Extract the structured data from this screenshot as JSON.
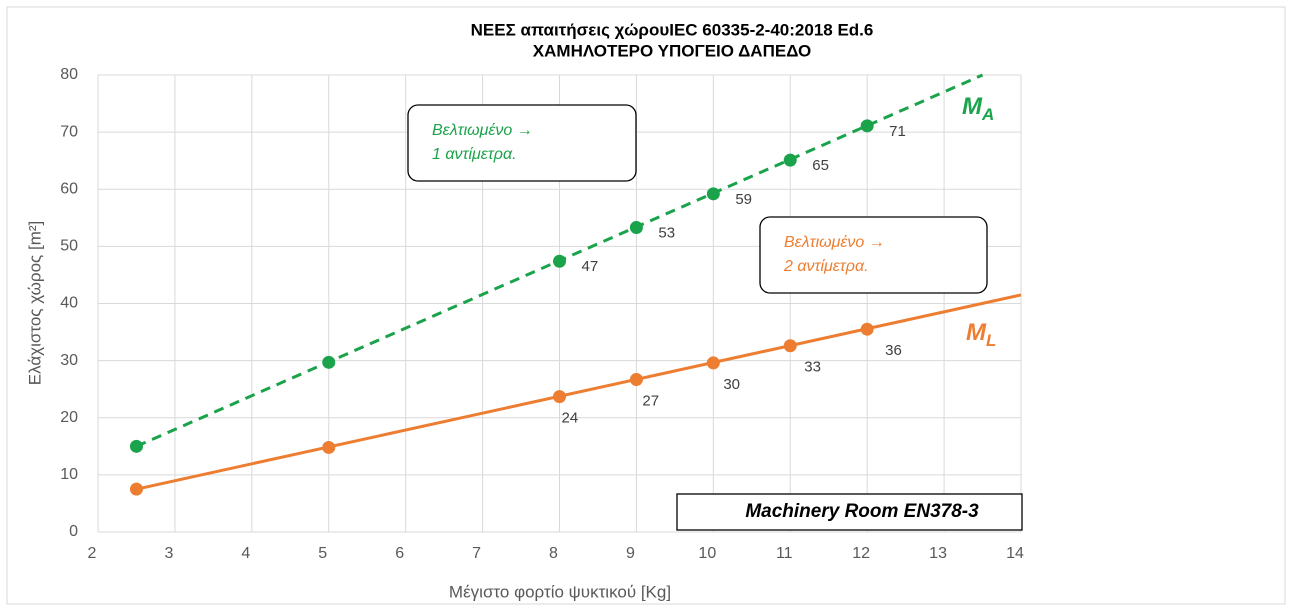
{
  "chart_data": {
    "type": "line",
    "title": "ΝΕΕΣ απαιτήσεις χώρουIEC 60335-2-40:2018 Ed.6",
    "subtitle": "ΧΑΜΗΛΟΤΕΡΟ ΥΠΟΓΕΙΟ ΔΑΠΕΔΟ",
    "x_label": "Μέγιστο φορτίο ψυκτικού [Kg]",
    "y_label": "Ελάχιστος χώρος [m²]",
    "x": [
      2.5,
      5,
      8,
      9,
      10,
      11,
      12
    ],
    "series": [
      {
        "name": "MA",
        "color": "#1aa34a",
        "dashed": true,
        "values": [
          15,
          29.7,
          47.4,
          53.3,
          59.2,
          65.1,
          71.1
        ],
        "value_labels": [
          null,
          null,
          "47",
          "53",
          "59",
          "65",
          "71"
        ],
        "trendline": {
          "x": [
            2.5,
            13.5
          ],
          "values": [
            15,
            80
          ]
        }
      },
      {
        "name": "ML",
        "color": "#ed7d31",
        "dashed": false,
        "values": [
          7.5,
          14.8,
          23.7,
          26.7,
          29.6,
          32.6,
          35.5
        ],
        "value_labels": [
          null,
          null,
          "24",
          "27",
          "30",
          "33",
          "36"
        ],
        "trendline": {
          "x": [
            2.5,
            14
          ],
          "values": [
            7.5,
            41.5
          ]
        }
      }
    ],
    "xlim": [
      2,
      14
    ],
    "xticks": [
      2,
      3,
      4,
      5,
      6,
      7,
      8,
      9,
      10,
      11,
      12,
      13,
      14
    ],
    "ylim": [
      0,
      80
    ],
    "yticks": [
      0,
      10,
      20,
      30,
      40,
      50,
      60,
      70,
      80
    ],
    "grid": true,
    "annotations": [
      {
        "lines": [
          "Βελτιωμένο →",
          "1 αντίμετρα."
        ],
        "color": "#1aa34a"
      },
      {
        "lines": [
          "Βελτιωμένο →",
          "2 αντίμετρα."
        ],
        "color": "#ed7d31"
      },
      {
        "lines": [
          "Machinery Room EN378-3"
        ],
        "color": "#000000"
      }
    ]
  }
}
